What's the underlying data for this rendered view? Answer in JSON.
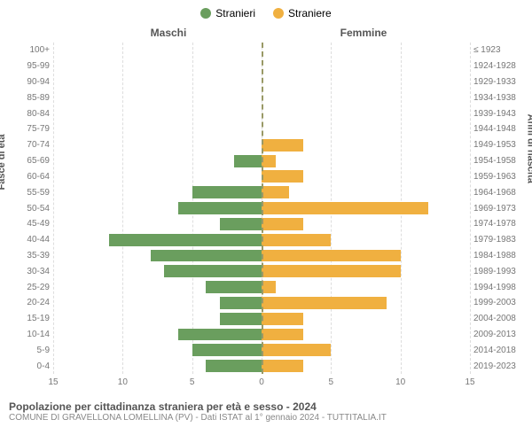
{
  "legend": {
    "male_label": "Stranieri",
    "female_label": "Straniere",
    "male_color": "#6a9e5e",
    "female_color": "#f0b040"
  },
  "gender_headers": {
    "male": "Maschi",
    "female": "Femmine"
  },
  "axis_labels": {
    "left": "Fasce di età",
    "right": "Anni di nascita"
  },
  "chart": {
    "type": "pyramid-bar",
    "xlim": 15,
    "xticks": [
      15,
      10,
      5,
      0,
      5,
      10,
      15
    ],
    "background_color": "#ffffff",
    "grid_color": "#dddddd",
    "center_line_color": "#999966",
    "male_bar_color": "#6a9e5e",
    "female_bar_color": "#f0b040",
    "rows": [
      {
        "age": "100+",
        "birth": "≤ 1923",
        "male": 0,
        "female": 0
      },
      {
        "age": "95-99",
        "birth": "1924-1928",
        "male": 0,
        "female": 0
      },
      {
        "age": "90-94",
        "birth": "1929-1933",
        "male": 0,
        "female": 0
      },
      {
        "age": "85-89",
        "birth": "1934-1938",
        "male": 0,
        "female": 0
      },
      {
        "age": "80-84",
        "birth": "1939-1943",
        "male": 0,
        "female": 0
      },
      {
        "age": "75-79",
        "birth": "1944-1948",
        "male": 0,
        "female": 0
      },
      {
        "age": "70-74",
        "birth": "1949-1953",
        "male": 0,
        "female": 3
      },
      {
        "age": "65-69",
        "birth": "1954-1958",
        "male": 2,
        "female": 1
      },
      {
        "age": "60-64",
        "birth": "1959-1963",
        "male": 0,
        "female": 3
      },
      {
        "age": "55-59",
        "birth": "1964-1968",
        "male": 5,
        "female": 2
      },
      {
        "age": "50-54",
        "birth": "1969-1973",
        "male": 6,
        "female": 12
      },
      {
        "age": "45-49",
        "birth": "1974-1978",
        "male": 3,
        "female": 3
      },
      {
        "age": "40-44",
        "birth": "1979-1983",
        "male": 11,
        "female": 5
      },
      {
        "age": "35-39",
        "birth": "1984-1988",
        "male": 8,
        "female": 10
      },
      {
        "age": "30-34",
        "birth": "1989-1993",
        "male": 7,
        "female": 10
      },
      {
        "age": "25-29",
        "birth": "1994-1998",
        "male": 4,
        "female": 1
      },
      {
        "age": "20-24",
        "birth": "1999-2003",
        "male": 3,
        "female": 9
      },
      {
        "age": "15-19",
        "birth": "2004-2008",
        "male": 3,
        "female": 3
      },
      {
        "age": "10-14",
        "birth": "2009-2013",
        "male": 6,
        "female": 3
      },
      {
        "age": "5-9",
        "birth": "2014-2018",
        "male": 5,
        "female": 5
      },
      {
        "age": "0-4",
        "birth": "2019-2023",
        "male": 4,
        "female": 3
      }
    ]
  },
  "footer": {
    "title": "Popolazione per cittadinanza straniera per età e sesso - 2024",
    "subtitle": "COMUNE DI GRAVELLONA LOMELLINA (PV) - Dati ISTAT al 1° gennaio 2024 - TUTTITALIA.IT"
  }
}
